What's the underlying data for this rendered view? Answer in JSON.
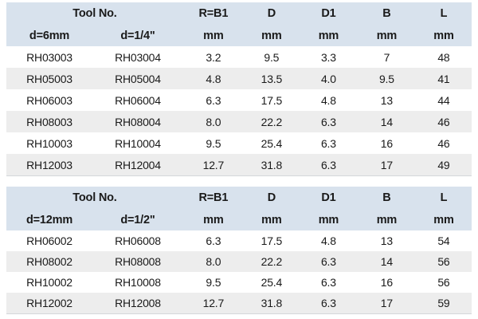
{
  "colors": {
    "header_bg": "#d8e2ed",
    "row_bg": "#ffffff",
    "row_alt_bg": "#ededed",
    "text": "#1a1a1a",
    "table_bottom_border": "#d4d7da"
  },
  "chart_data": [
    {
      "type": "table",
      "tool_no_label": "Tool No.",
      "dim_columns": [
        "R=B1",
        "D",
        "D1",
        "B",
        "L"
      ],
      "sub_header": [
        "d=6mm",
        "d=1/4\"",
        "mm",
        "mm",
        "mm",
        "mm",
        "mm"
      ],
      "rows": [
        [
          "RH03003",
          "RH03004",
          "3.2",
          "9.5",
          "3.3",
          "7",
          "48"
        ],
        [
          "RH05003",
          "RH05004",
          "4.8",
          "13.5",
          "4.0",
          "9.5",
          "41"
        ],
        [
          "RH06003",
          "RH06004",
          "6.3",
          "17.5",
          "4.8",
          "13",
          "44"
        ],
        [
          "RH08003",
          "RH08004",
          "8.0",
          "22.2",
          "6.3",
          "14",
          "46"
        ],
        [
          "RH10003",
          "RH10004",
          "9.5",
          "25.4",
          "6.3",
          "16",
          "46"
        ],
        [
          "RH12003",
          "RH12004",
          "12.7",
          "31.8",
          "6.3",
          "17",
          "49"
        ]
      ]
    },
    {
      "type": "table",
      "tool_no_label": "Tool No.",
      "dim_columns": [
        "R=B1",
        "D",
        "D1",
        "B",
        "L"
      ],
      "sub_header": [
        "d=12mm",
        "d=1/2\"",
        "mm",
        "mm",
        "mm",
        "mm",
        "mm"
      ],
      "rows": [
        [
          "RH06002",
          "RH06008",
          "6.3",
          "17.5",
          "4.8",
          "13",
          "54"
        ],
        [
          "RH08002",
          "RH08008",
          "8.0",
          "22.2",
          "6.3",
          "14",
          "56"
        ],
        [
          "RH10002",
          "RH10008",
          "9.5",
          "25.4",
          "6.3",
          "16",
          "56"
        ],
        [
          "RH12002",
          "RH12008",
          "12.7",
          "31.8",
          "6.3",
          "17",
          "59"
        ]
      ]
    }
  ]
}
